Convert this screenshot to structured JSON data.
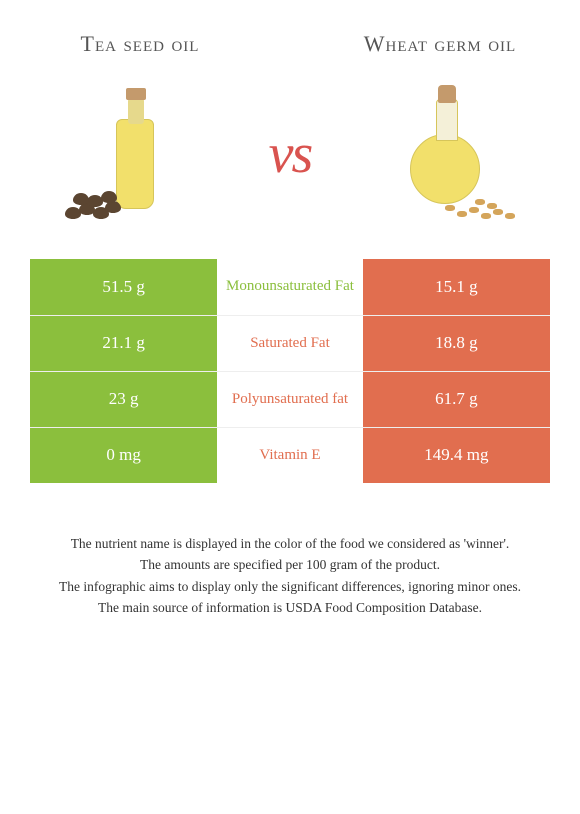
{
  "titles": {
    "left": "Tea seed oil",
    "right": "Wheat germ oil"
  },
  "vs_label": "vs",
  "colors": {
    "left_bg": "#8bbf3d",
    "right_bg": "#e16e4f",
    "left_text": "#8bbf3d",
    "right_text": "#e16e4f",
    "row_border": "#eeeeee",
    "body_text": "#333333"
  },
  "comparison": {
    "type": "table",
    "rows": [
      {
        "left": "51.5 g",
        "label": "Monounsaturated Fat",
        "right": "15.1 g",
        "winner": "left"
      },
      {
        "left": "21.1 g",
        "label": "Saturated Fat",
        "right": "18.8 g",
        "winner": "right"
      },
      {
        "left": "23 g",
        "label": "Polyunsaturated fat",
        "right": "61.7 g",
        "winner": "right"
      },
      {
        "left": "0 mg",
        "label": "Vitamin E",
        "right": "149.4 mg",
        "winner": "right"
      }
    ]
  },
  "footer_lines": [
    "The nutrient name is displayed in the color of the food we considered as 'winner'.",
    "The amounts are specified per 100 gram of the product.",
    "The infographic aims to display only the significant differences, ignoring minor ones.",
    "The main source of information is USDA Food Composition Database."
  ]
}
